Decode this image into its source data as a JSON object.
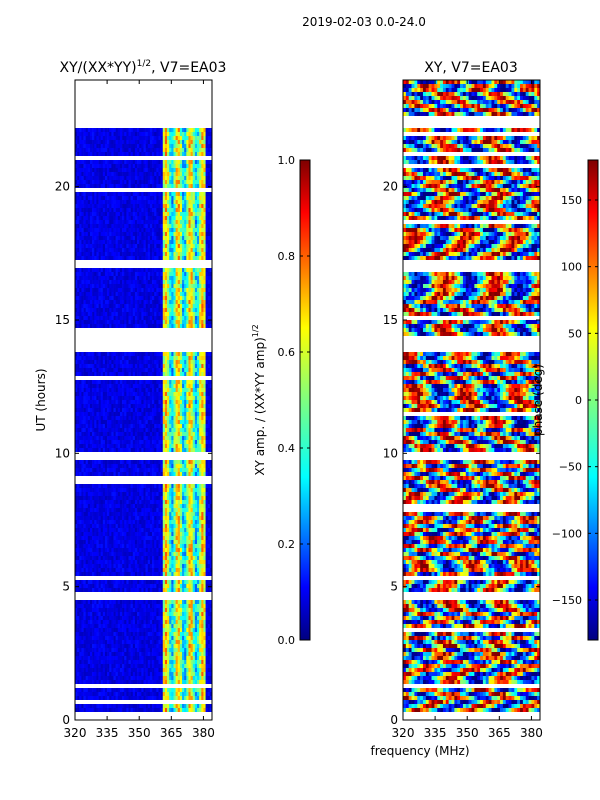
{
  "suptitle": "2019-02-03 0.0-24.0",
  "shared": {
    "ylabel": "UT (hours)",
    "xlabel": "frequency (MHz)"
  },
  "chart_data": [
    {
      "type": "heatmap",
      "title_main": "XY/(XX*YY)",
      "title_sup": "1/2",
      "title_rest": ", V7=EA03",
      "x_ticks": [
        "320",
        "335",
        "350",
        "365",
        "380"
      ],
      "x_tick_values": [
        320,
        335,
        350,
        365,
        380
      ],
      "xlim": [
        320,
        384
      ],
      "y_ticks": [
        "0",
        "5",
        "10",
        "15",
        "20"
      ],
      "y_tick_values": [
        0,
        5,
        10,
        15,
        20
      ],
      "ylim": [
        0,
        24
      ],
      "colorbar": {
        "label_main": "XY amp. / (XX*YY amp)",
        "label_sup": "1/2",
        "range": [
          0.0,
          1.0
        ],
        "ticks": [
          "0.0",
          "0.2",
          "0.4",
          "0.6",
          "0.8",
          "1.0"
        ],
        "tick_values": [
          0.0,
          0.2,
          0.4,
          0.6,
          0.8,
          1.0
        ],
        "colormap": "jet"
      },
      "high_value_channel_band_mhz": [
        361,
        381
      ],
      "flagged_time_ranges_hours": [
        [
          0.05,
          0.3
        ],
        [
          0.6,
          0.75
        ],
        [
          1.2,
          1.4
        ],
        [
          4.5,
          4.8
        ],
        [
          9.8,
          10.0
        ],
        [
          13.8,
          14.4
        ],
        [
          17.0,
          17.3
        ],
        [
          22.2,
          24.0
        ]
      ]
    },
    {
      "type": "heatmap",
      "title_main": "XY, V7=EA03",
      "x_ticks": [
        "320",
        "335",
        "350",
        "365",
        "380"
      ],
      "x_tick_values": [
        320,
        335,
        350,
        365,
        380
      ],
      "xlim": [
        320,
        384
      ],
      "y_ticks": [
        "0",
        "5",
        "10",
        "15",
        "20"
      ],
      "y_tick_values": [
        0,
        5,
        10,
        15,
        20
      ],
      "ylim": [
        0,
        24
      ],
      "colorbar": {
        "label_main": "phase (deg)",
        "range": [
          -180,
          180
        ],
        "ticks": [
          "−150",
          "−100",
          "−50",
          "0",
          "50",
          "100",
          "150"
        ],
        "tick_values": [
          -150,
          -100,
          -50,
          0,
          50,
          100,
          150
        ],
        "colormap": "jet"
      },
      "flagged_time_ranges_hours": [
        [
          0.05,
          0.3
        ],
        [
          1.2,
          1.4
        ],
        [
          4.5,
          4.8
        ],
        [
          9.8,
          10.0
        ],
        [
          13.8,
          14.4
        ],
        [
          17.0,
          17.3
        ],
        [
          22.2,
          22.6
        ]
      ]
    }
  ]
}
